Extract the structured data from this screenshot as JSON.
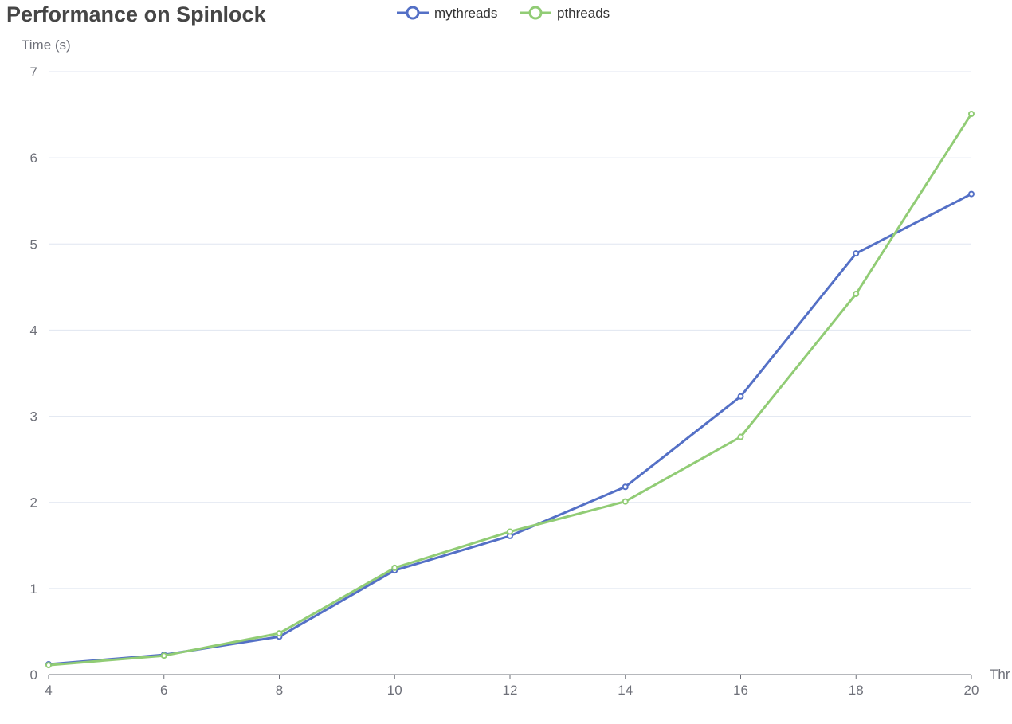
{
  "chart_data": {
    "type": "line",
    "title": "Performance on Spinlock",
    "xlabel": "Thr",
    "ylabel": "Time (s)",
    "x": [
      4,
      6,
      8,
      10,
      12,
      14,
      16,
      18,
      20
    ],
    "xlim": [
      4,
      20
    ],
    "ylim": [
      0,
      7
    ],
    "x_ticks": [
      4,
      6,
      8,
      10,
      12,
      14,
      16,
      18,
      20
    ],
    "y_ticks": [
      0,
      1,
      2,
      3,
      4,
      5,
      6,
      7
    ],
    "grid": "horizontal",
    "legend_position": "top-center",
    "series": [
      {
        "name": "mythreads",
        "color": "#5470c6",
        "values": [
          0.12,
          0.23,
          0.44,
          1.21,
          1.61,
          2.18,
          3.23,
          4.89,
          5.58
        ]
      },
      {
        "name": "pthreads",
        "color": "#91cc75",
        "values": [
          0.11,
          0.22,
          0.48,
          1.24,
          1.66,
          2.01,
          2.76,
          4.42,
          6.51
        ]
      }
    ]
  },
  "colors": {
    "title": "#464646",
    "axis_text": "#6e7079",
    "grid": "#e0e6f1",
    "axis_line": "#6e7079"
  }
}
